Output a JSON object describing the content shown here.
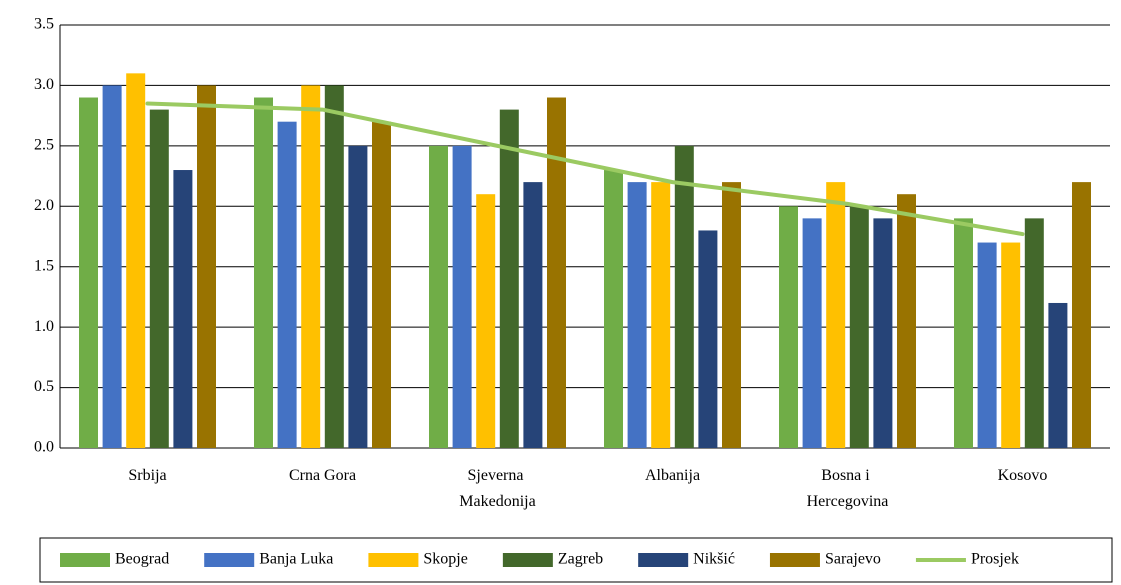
{
  "chart_data": {
    "type": "bar",
    "categories": [
      "Srbija",
      "Crna Gora",
      "Sjeverna Makedonija",
      "Albanija",
      "Bosna i Hercegovina",
      "Kosovo"
    ],
    "series": [
      {
        "name": "Beograd",
        "color": "#70ad47",
        "values": [
          2.9,
          2.9,
          2.5,
          2.3,
          2.0,
          1.9
        ]
      },
      {
        "name": "Banja Luka",
        "color": "#4472c4",
        "values": [
          3.0,
          2.7,
          2.5,
          2.2,
          1.9,
          1.7
        ]
      },
      {
        "name": "Skopje",
        "color": "#ffc000",
        "values": [
          3.1,
          3.0,
          2.1,
          2.2,
          2.2,
          1.7
        ]
      },
      {
        "name": "Zagreb",
        "color": "#43682b",
        "values": [
          2.8,
          3.0,
          2.8,
          2.5,
          2.0,
          1.9
        ]
      },
      {
        "name": "Nikšić",
        "color": "#264478",
        "values": [
          2.3,
          2.5,
          2.2,
          1.8,
          1.9,
          1.2
        ]
      },
      {
        "name": "Sarajevo",
        "color": "#997300",
        "values": [
          3.0,
          2.7,
          2.9,
          2.2,
          2.1,
          2.2
        ]
      },
      {
        "name": "Prosjek",
        "color": "#9bca62",
        "type": "line",
        "values": [
          2.85,
          2.8,
          2.5,
          2.2,
          2.02,
          1.77
        ]
      }
    ],
    "ylim": [
      0,
      3.5
    ],
    "yticks": [
      {
        "value": 0,
        "label": "0.0"
      },
      0.5,
      {
        "value": 1,
        "label": "1.0"
      },
      1.5,
      {
        "value": 2,
        "label": "2.0"
      },
      2.5,
      {
        "value": 3,
        "label": "3.0"
      },
      3.5
    ],
    "grid": true,
    "legend": "bottom"
  }
}
